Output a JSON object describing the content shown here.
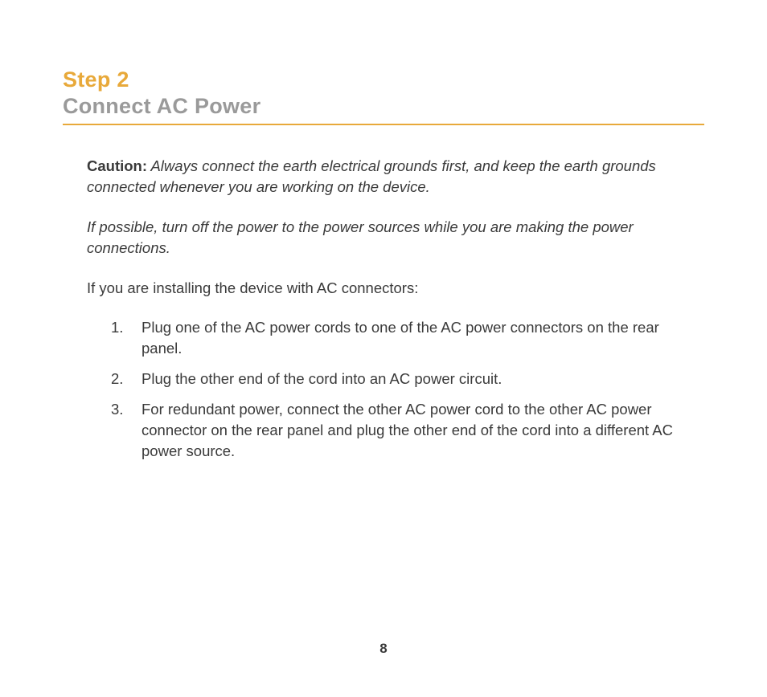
{
  "header": {
    "step_label": "Step 2",
    "step_title": "Connect AC Power",
    "accent_color": "#e8a93a",
    "subtitle_color": "#9a9a9a"
  },
  "content": {
    "caution_label": "Caution:",
    "caution_text": " Always connect the earth electrical grounds first, and keep the earth grounds connected whenever you are working on the device.",
    "note_text": "If possible, turn off the power to the power sources while you are making the power connections.",
    "intro_text": "If you are installing the device with AC connectors:",
    "steps": [
      "Plug one of the AC power cords to one of the AC power connectors on the rear panel.",
      "Plug the other end of the cord into an AC power circuit.",
      "For redundant power, connect the other AC power cord to the other AC power connector on the rear panel and plug the other end of the cord into a different AC power source."
    ]
  },
  "page_number": "8",
  "colors": {
    "background": "#ffffff",
    "text": "#3a3a3a",
    "accent": "#e8a93a",
    "subtitle": "#9a9a9a"
  }
}
